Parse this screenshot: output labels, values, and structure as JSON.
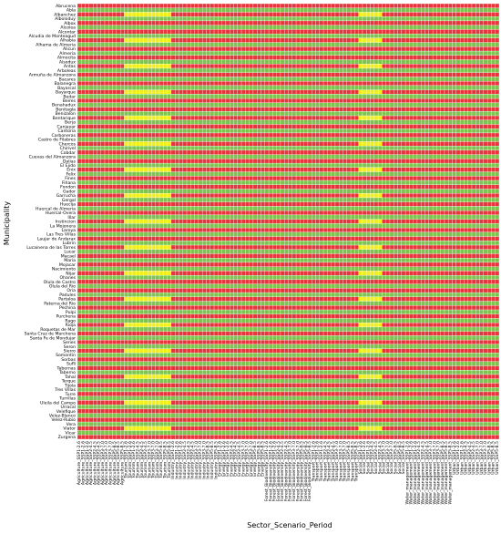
{
  "chart_data": {
    "type": "heatmap",
    "title": "",
    "xlabel": "Sector_Scenario_Period",
    "ylabel": "Municipality",
    "color_scale": {
      "1": "#e8343c",
      "2": "#f2ee1a",
      "3": "#7cc44f"
    },
    "cell_text_color": "#ffffff",
    "grid": "white cell borders",
    "y_categories": [
      "Abrucena",
      "Abla",
      "Albanchez",
      "Alboloduy",
      "Albox",
      "Alcolea",
      "Alcontar",
      "Alcudia de Monteagud",
      "Alhabia",
      "Alhama de Almeria",
      "Alicun",
      "Almeria",
      "Almocita",
      "Alsodux",
      "Antas",
      "Arboleas",
      "Armuña de Almanzora",
      "Bacares",
      "Balanegra",
      "Bayarcal",
      "Bayarque",
      "Bedar",
      "Beires",
      "Benahadux",
      "Benitagla",
      "Benizalon",
      "Bentarique",
      "Berja",
      "Canjayar",
      "Cantoria",
      "Carboneras",
      "Castro de Filabres",
      "Chercos",
      "Chirivel",
      "Cobdar",
      "Cuevas del Almanzora",
      "Dalias",
      "El Ejido",
      "Enix",
      "Felix",
      "Fines",
      "Fiñana",
      "Fondon",
      "Gador",
      "Garrucha",
      "Gergal",
      "Huecija",
      "Huercal de Almeria",
      "Huercal-Overa",
      "Illar",
      "Instincion",
      "La Mojonera",
      "Laroya",
      "Las Tres Villas",
      "Laujar de Andarax",
      "Lubrin",
      "Lucainena de las Torres",
      "Lucar",
      "Macael",
      "Maria",
      "Mojacar",
      "Nacimiento",
      "Nijar",
      "Ohanes",
      "Olula de Castro",
      "Olula del Rio",
      "Oria",
      "Padules",
      "Partaloa",
      "Paterna del Rio",
      "Pechina",
      "Pulpi",
      "Purchena",
      "Rago",
      "Rioja",
      "Roquetas de Mar",
      "Santa Cruz de Marchena",
      "Santa Fe de Mondujar",
      "Senes",
      "Seron",
      "Sierro",
      "Somontin",
      "Sorbas",
      "Sufli",
      "Tabernas",
      "Taberno",
      "Tahal",
      "Terque",
      "Tijola",
      "Tres Villas",
      "Turre",
      "Turrillas",
      "Uleila del Campo",
      "Urracal",
      "Velefique",
      "Velez-Blanco",
      "Velez-Rubio",
      "Vera",
      "Viator",
      "Vicar",
      "Zurgena"
    ],
    "x_categories": [
      "Agriculture_SSP1-2.6",
      "Agriculture_SSP1-2.6",
      "Agriculture_SSP1-2.6",
      "Agriculture_SSP2-4.5",
      "Agriculture_SSP2-4.5",
      "Agriculture_SSP2-4.5",
      "Agriculture_SSP3-7.0",
      "Agriculture_SSP3-7.0",
      "Agriculture_SSP3-7.0",
      "Agriculture_SSP5-8.5",
      "Agriculture_SSP5-8.5",
      "Agriculture_SSP5-8.5",
      "Tourism_SSP1-2.6",
      "Tourism_SSP1-2.6",
      "Tourism_SSP1-2.6",
      "Tourism_SSP2-4.5",
      "Tourism_SSP2-4.5",
      "Tourism_SSP2-4.5",
      "Tourism_SSP3-7.0",
      "Tourism_SSP3-7.0",
      "Tourism_SSP3-7.0",
      "Tourism_SSP5-8.5",
      "Tourism_SSP5-8.5",
      "Tourism_SSP5-8.5",
      "Industry_SSP1-2.6",
      "Industry_SSP1-2.6",
      "Industry_SSP1-2.6",
      "Industry_SSP2-4.5",
      "Industry_SSP2-4.5",
      "Industry_SSP2-4.5",
      "Industry_SSP3-7.0",
      "Industry_SSP3-7.0",
      "Industry_SSP3-7.0",
      "Industry_SSP5-8.5",
      "Industry_SSP5-8.5",
      "Industry_SSP5-8.5",
      "Energy_SSP1-2.6",
      "Energy_SSP1-2.6",
      "Energy_SSP1-2.6",
      "Energy_SSP2-4.5",
      "Energy_SSP2-4.5",
      "Energy_SSP2-4.5",
      "Energy_SSP3-7.0",
      "Energy_SSP3-7.0",
      "Energy_SSP3-7.0",
      "Energy_SSP5-8.5",
      "Energy_SSP5-8.5",
      "Energy_SSP5-8.5",
      "Forest_Biodiversity_SSP1-2.6",
      "Forest_Biodiversity_SSP1-2.6",
      "Forest_Biodiversity_SSP1-2.6",
      "Forest_Biodiversity_SSP2-4.5",
      "Forest_Biodiversity_SSP2-4.5",
      "Forest_Biodiversity_SSP2-4.5",
      "Forest_Biodiversity_SSP3-7.0",
      "Forest_Biodiversity_SSP3-7.0",
      "Forest_Biodiversity_SSP3-7.0",
      "Forest_Biodiversity_SSP5-8.5",
      "Forest_Biodiversity_SSP5-8.5",
      "Forest_Biodiversity_SSP5-8.5",
      "Transport_SSP1-2.6",
      "Transport_SSP1-2.6",
      "Transport_SSP1-2.6",
      "Transport_SSP2-4.5",
      "Transport_SSP2-4.5",
      "Transport_SSP2-4.5",
      "Transport_SSP3-7.0",
      "Transport_SSP3-7.0",
      "Transport_SSP3-7.0",
      "Transport_SSP5-8.5",
      "Transport_SSP5-8.5",
      "Transport_SSP5-8.5",
      "Social_SSP1-2.6",
      "Social_SSP1-2.6",
      "Social_SSP1-2.6",
      "Social_SSP2-4.5",
      "Social_SSP2-4.5",
      "Social_SSP2-4.5",
      "Social_SSP3-7.0",
      "Social_SSP3-7.0",
      "Social_SSP3-7.0",
      "Social_SSP5-8.5",
      "Social_SSP5-8.5",
      "Social_SSP5-8.5",
      "Water_management_SSP1-2.6",
      "Water_management_SSP1-2.6",
      "Water_management_SSP1-2.6",
      "Water_management_SSP2-4.5",
      "Water_management_SSP2-4.5",
      "Water_management_SSP2-4.5",
      "Water_management_SSP3-7.0",
      "Water_management_SSP3-7.0",
      "Water_management_SSP3-7.0",
      "Water_management_SSP5-8.5",
      "Water_management_SSP5-8.5",
      "Water_management_SSP5-8.5",
      "Urban_SSP1-2.6",
      "Urban_SSP1-2.6",
      "Urban_SSP1-2.6",
      "Urban_SSP2-4.5",
      "Urban_SSP2-4.5",
      "Urban_SSP2-4.5",
      "Urban_SSP3-7.0",
      "Urban_SSP3-7.0",
      "Urban_SSP3-7.0",
      "Urban_SSP5-8.5",
      "Urban_SSP5-8.5",
      "Urban_SSP5-8.5"
    ],
    "values_encoding": "one string per municipality row, one digit per sector/scenario/period column; 1 = red, 2 = yellow, 3 = green",
    "values": [
      "111111111111111111111111111111111111111111111111111111111111111111111111111111111111111111111111111111111111111111111111",
      "333333333333333333333333333333333333333333333333333333333333333333333333333333333333333333333333333333333333333333333333",
      "111111111111222222222222111111111111111111111111111111111111111111111111222222111111111111111111111111111111111111111111",
      "333333333333333333333333333333333333333333333333333333333333333333333333333333333333333333333333333333333333333333333333",
      "111111111111111111111111111111111111111111111111111111111111111111111111111111111111111111111111111111111111111111111111",
      "333333333333333333333333333333333333333333333333333333333333333333333333333333333333333333333333333333333333333333333333",
      "111111111111111111111111111111111111111111111111111111111111111111111111111111111111111111111111111111111111111111111111",
      "333333333333333333333333333333333333333333333333333333333333333333333333333333333333333333333333333333333333333333333333",
      "111111111111222222222222111111111111111111111111111111111111111111111111222222111111111111111111111111111111111111111111",
      "333333333333333333333333333333333333333333333333333333333333333333333333333333333333333333333333333333333333333333333333",
      "111111111111111111111111111111111111111111111111111111111111111111111111111111111111111111111111111111111111111111111111",
      "333333333333333333333333333333333333333333333333333333333333333333333333333333333333333333333333333333333333333333333333",
      "111111111111111111111111111111111111111111111111111111111111111111111111111111111111111111111111111111111111111111111111",
      "333333333333333333333333333333333333333333333333333333333333333333333333333333333333333333333333333333333333333333333333",
      "111111111111222222222222111111111111111111111111111111111111111111111111222222111111111111111111111111111111111111111111",
      "333333333333333333333333333333333333333333333333333333333333333333333333333333333333333333333333333333333333333333333333",
      "111111111111111111111111111111111111111111111111111111111111111111111111111111111111111111111111111111111111111111111111",
      "333333333333333333333333333333333333333333333333333333333333333333333333333333333333333333333333333333333333333333333333",
      "111111111111111111111111111111111111111111111111111111111111111111111111111111111111111111111111111111111111111111111111",
      "333333333333333333333333333333333333333333333333333333333333333333333333333333333333333333333333333333333333333333333333",
      "111111111111222222222222111111111111111111111111111111111111111111111111222222111111111111111111111111111111111111111111",
      "333333333333333333333333333333333333333333333333333333333333333333333333333333333333333333333333333333333333333333333333",
      "111111111111111111111111111111111111111111111111111111111111111111111111111111111111111111111111111111111111111111111111",
      "333333333333333333333333333333333333333333333333333333333333333333333333333333333333333333333333333333333333333333333333",
      "111111111111111111111111111111111111111111111111111111111111111111111111111111111111111111111111111111111111111111111111",
      "333333333333333333333333333333333333333333333333333333333333333333333333333333333333333333333333333333333333333333333333",
      "111111111111222222222222111111111111111111111111111111111111111111111111222222111111111111111111111111111111111111111111",
      "333333333333333333333333333333333333333333333333333333333333333333333333333333333333333333333333333333333333333333333333",
      "111111111111111111111111111111111111111111111111111111111111111111111111111111111111111111111111111111111111111111111111",
      "333333333333333333333333333333333333333333333333333333333333333333333333333333333333333333333333333333333333333333333333",
      "111111111111111111111111111111111111111111111111111111111111111111111111111111111111111111111111111111111111111111111111",
      "333333333333333333333333333333333333333333333333333333333333333333333333333333333333333333333333333333333333333333333333",
      "111111111111222222222222111111111111111111111111111111111111111111111111222222111111111111111111111111111111111111111111",
      "333333333333333333333333333333333333333333333333333333333333333333333333333333333333333333333333333333333333333333333333",
      "111111111111111111111111111111111111111111111111111111111111111111111111111111111111111111111111111111111111111111111111",
      "333333333333333333333333333333333333333333333333333333333333333333333333333333333333333333333333333333333333333333333333",
      "111111111111111111111111111111111111111111111111111111111111111111111111111111111111111111111111111111111111111111111111",
      "333333333333333333333333333333333333333333333333333333333333333333333333333333333333333333333333333333333333333333333333",
      "111111111111222222222222111111111111111111111111111111111111111111111111222222111111111111111111111111111111111111111111",
      "333333333333333333333333333333333333333333333333333333333333333333333333333333333333333333333333333333333333333333333333",
      "111111111111111111111111111111111111111111111111111111111111111111111111111111111111111111111111111111111111111111111111",
      "333333333333333333333333333333333333333333333333333333333333333333333333333333333333333333333333333333333333333333333333",
      "111111111111111111111111111111111111111111111111111111111111111111111111111111111111111111111111111111111111111111111111",
      "333333333333333333333333333333333333333333333333333333333333333333333333333333333333333333333333333333333333333333333333",
      "111111111111222222222222111111111111111111111111111111111111111111111111222222111111111111111111111111111111111111111111",
      "333333333333333333333333333333333333333333333333333333333333333333333333333333333333333333333333333333333333333333333333",
      "111111111111111111111111111111111111111111111111111111111111111111111111111111111111111111111111111111111111111111111111",
      "333333333333333333333333333333333333333333333333333333333333333333333333333333333333333333333333333333333333333333333333",
      "111111111111111111111111111111111111111111111111111111111111111111111111111111111111111111111111111111111111111111111111",
      "333333333333333333333333333333333333333333333333333333333333333333333333333333333333333333333333333333333333333333333333",
      "111111111111222222222222111111111111111111111111111111111111111111111111222222111111111111111111111111111111111111111111",
      "333333333333333333333333333333333333333333333333333333333333333333333333333333333333333333333333333333333333333333333333",
      "111111111111111111111111111111111111111111111111111111111111111111111111111111111111111111111111111111111111111111111111",
      "333333333333333333333333333333333333333333333333333333333333333333333333333333333333333333333333333333333333333333333333",
      "111111111111111111111111111111111111111111111111111111111111111111111111111111111111111111111111111111111111111111111111",
      "333333333333333333333333333333333333333333333333333333333333333333333333333333333333333333333333333333333333333333333333",
      "111111111111222222222222111111111111111111111111111111111111111111111111222222111111111111111111111111111111111111111111",
      "333333333333333333333333333333333333333333333333333333333333333333333333333333333333333333333333333333333333333333333333",
      "111111111111111111111111111111111111111111111111111111111111111111111111111111111111111111111111111111111111111111111111",
      "333333333333333333333333333333333333333333333333333333333333333333333333333333333333333333333333333333333333333333333333",
      "111111111111111111111111111111111111111111111111111111111111111111111111111111111111111111111111111111111111111111111111",
      "333333333333333333333333333333333333333333333333333333333333333333333333333333333333333333333333333333333333333333333333",
      "111111111111222222222222111111111111111111111111111111111111111111111111222222111111111111111111111111111111111111111111",
      "333333333333333333333333333333333333333333333333333333333333333333333333333333333333333333333333333333333333333333333333",
      "111111111111111111111111111111111111111111111111111111111111111111111111111111111111111111111111111111111111111111111111",
      "333333333333333333333333333333333333333333333333333333333333333333333333333333333333333333333333333333333333333333333333",
      "111111111111111111111111111111111111111111111111111111111111111111111111111111111111111111111111111111111111111111111111",
      "333333333333333333333333333333333333333333333333333333333333333333333333333333333333333333333333333333333333333333333333",
      "111111111111222222222222111111111111111111111111111111111111111111111111222222111111111111111111111111111111111111111111",
      "333333333333333333333333333333333333333333333333333333333333333333333333333333333333333333333333333333333333333333333333",
      "111111111111111111111111111111111111111111111111111111111111111111111111111111111111111111111111111111111111111111111111",
      "333333333333333333333333333333333333333333333333333333333333333333333333333333333333333333333333333333333333333333333333",
      "111111111111111111111111111111111111111111111111111111111111111111111111111111111111111111111111111111111111111111111111",
      "333333333333333333333333333333333333333333333333333333333333333333333333333333333333333333333333333333333333333333333333",
      "111111111111222222222222111111111111111111111111111111111111111111111111222222111111111111111111111111111111111111111111",
      "333333333333333333333333333333333333333333333333333333333333333333333333333333333333333333333333333333333333333333333333",
      "111111111111111111111111111111111111111111111111111111111111111111111111111111111111111111111111111111111111111111111111",
      "333333333333333333333333333333333333333333333333333333333333333333333333333333333333333333333333333333333333333333333333",
      "111111111111111111111111111111111111111111111111111111111111111111111111111111111111111111111111111111111111111111111111",
      "333333333333333333333333333333333333333333333333333333333333333333333333333333333333333333333333333333333333333333333333",
      "111111111111222222222222111111111111111111111111111111111111111111111111222222111111111111111111111111111111111111111111",
      "333333333333333333333333333333333333333333333333333333333333333333333333333333333333333333333333333333333333333333333333",
      "111111111111111111111111111111111111111111111111111111111111111111111111111111111111111111111111111111111111111111111111",
      "333333333333333333333333333333333333333333333333333333333333333333333333333333333333333333333333333333333333333333333333",
      "111111111111111111111111111111111111111111111111111111111111111111111111111111111111111111111111111111111111111111111111",
      "333333333333333333333333333333333333333333333333333333333333333333333333333333333333333333333333333333333333333333333333",
      "111111111111222222222222111111111111111111111111111111111111111111111111222222111111111111111111111111111111111111111111",
      "333333333333333333333333333333333333333333333333333333333333333333333333333333333333333333333333333333333333333333333333",
      "111111111111111111111111111111111111111111111111111111111111111111111111111111111111111111111111111111111111111111111111",
      "333333333333333333333333333333333333333333333333333333333333333333333333333333333333333333333333333333333333333333333333",
      "111111111111111111111111111111111111111111111111111111111111111111111111111111111111111111111111111111111111111111111111",
      "333333333333333333333333333333333333333333333333333333333333333333333333333333333333333333333333333333333333333333333333",
      "111111111111222222222222111111111111111111111111111111111111111111111111222222111111111111111111111111111111111111111111",
      "333333333333333333333333333333333333333333333333333333333333333333333333333333333333333333333333333333333333333333333333",
      "111111111111111111111111111111111111111111111111111111111111111111111111111111111111111111111111111111111111111111111111",
      "333333333333333333333333333333333333333333333333333333333333333333333333333333333333333333333333333333333333333333333333",
      "111111111111111111111111111111111111111111111111111111111111111111111111111111111111111111111111111111111111111111111111",
      "333333333333333333333333333333333333333333333333333333333333333333333333333333333333333333333333333333333333333333333333",
      "111111111111222222222222111111111111111111111111111111111111111111111111222222111111111111111111111111111111111111111111",
      "333333333333333333333333333333333333333333333333333333333333333333333333333333333333333333333333333333333333333333333333",
      "111111111111111111111111111111111111111111111111111111111111111111111111111111111111111111111111111111111111111111111111"
    ]
  }
}
